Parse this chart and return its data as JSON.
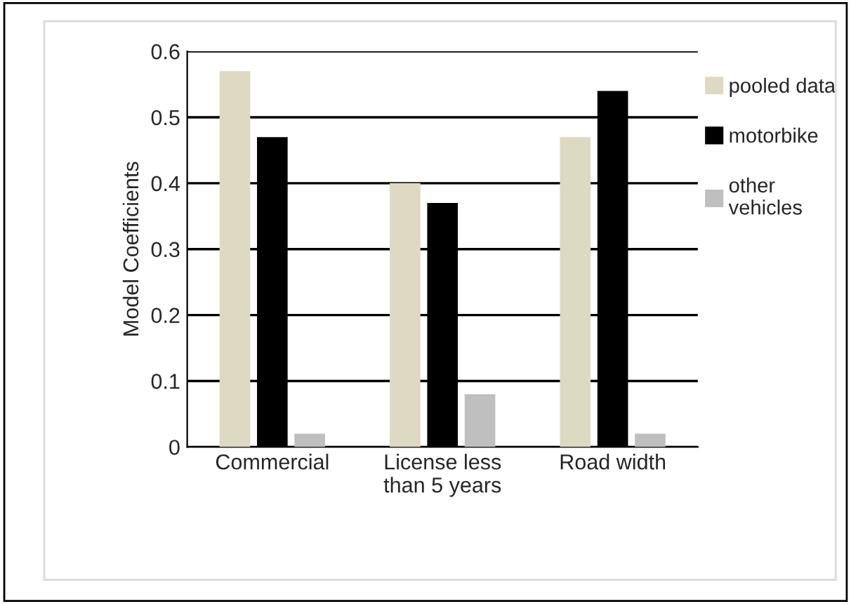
{
  "chart_data": {
    "type": "bar",
    "ylabel": "Model Coefficients",
    "categories": [
      "Commercial",
      "License less\nthan 5 years",
      "Road width"
    ],
    "series": [
      {
        "name": "pooled data",
        "color": "#ddd9c3",
        "values": [
          0.57,
          0.4,
          0.47
        ]
      },
      {
        "name": "motorbike",
        "color": "#000000",
        "values": [
          0.47,
          0.37,
          0.54
        ]
      },
      {
        "name": "other\nvehicles",
        "color": "#bfbfbf",
        "values": [
          0.02,
          0.08,
          0.02
        ]
      }
    ],
    "ylim": [
      0,
      0.6
    ],
    "yticks": [
      {
        "value": 0,
        "label": "0"
      },
      0.1,
      0.2,
      0.3,
      0.4,
      0.5,
      0.6
    ],
    "grid": "y",
    "legend": "right"
  }
}
